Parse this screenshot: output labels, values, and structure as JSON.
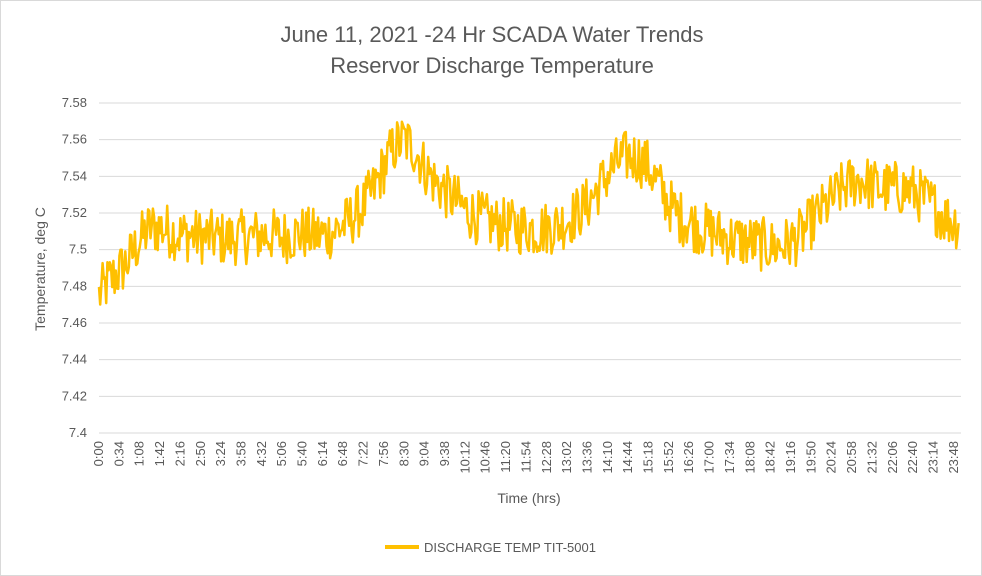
{
  "chart_data": {
    "type": "line",
    "title_lines": [
      "June 11, 2021 -24 Hr SCADA Water Trends",
      "Reservor Discharge Temperature"
    ],
    "xlabel": "Time (hrs)",
    "ylabel": "Temperature, deg C",
    "ylim": [
      7.4,
      7.58
    ],
    "y_ticks": [
      "7.4",
      "7.42",
      "7.44",
      "7.46",
      "7.48",
      "7.5",
      "7.52",
      "7.54",
      "7.56",
      "7.58"
    ],
    "x_tick_labels": [
      "0:00",
      "0:34",
      "1:08",
      "1:42",
      "2:16",
      "2:50",
      "3:24",
      "3:58",
      "4:32",
      "5:06",
      "5:40",
      "6:14",
      "6:48",
      "7:22",
      "7:56",
      "8:30",
      "9:04",
      "9:38",
      "10:12",
      "10:46",
      "11:20",
      "11:54",
      "12:28",
      "13:02",
      "13:36",
      "14:10",
      "14:44",
      "15:18",
      "15:52",
      "16:26",
      "17:00",
      "17:34",
      "18:08",
      "18:42",
      "19:16",
      "19:50",
      "20:24",
      "20:58",
      "21:32",
      "22:06",
      "22:40",
      "23:14",
      "23:48"
    ],
    "grid": true,
    "legend_position": "bottom",
    "series": [
      {
        "name": "DISCHARGE TEMP TIT-5001",
        "color": "#FFC000",
        "x_minutes": [
          0,
          17,
          34,
          51,
          68,
          85,
          102,
          119,
          136,
          153,
          170,
          187,
          204,
          221,
          238,
          255,
          272,
          289,
          306,
          323,
          340,
          357,
          374,
          391,
          408,
          425,
          442,
          459,
          476,
          493,
          510,
          527,
          544,
          561,
          578,
          595,
          612,
          629,
          646,
          663,
          680,
          697,
          714,
          731,
          748,
          765,
          782,
          799,
          816,
          833,
          850,
          867,
          884,
          901,
          918,
          935,
          952,
          969,
          986,
          1003,
          1020,
          1037,
          1054,
          1071,
          1088,
          1105,
          1122,
          1139,
          1156,
          1173,
          1190,
          1207,
          1224,
          1241,
          1258,
          1275,
          1292,
          1309,
          1326,
          1343,
          1360,
          1377,
          1394,
          1411,
          1428,
          1436
        ],
        "values": [
          7.475,
          7.483,
          7.488,
          7.495,
          7.505,
          7.512,
          7.512,
          7.51,
          7.508,
          7.508,
          7.507,
          7.507,
          7.506,
          7.506,
          7.507,
          7.507,
          7.508,
          7.508,
          7.507,
          7.508,
          7.509,
          7.508,
          7.508,
          7.51,
          7.513,
          7.518,
          7.524,
          7.533,
          7.545,
          7.556,
          7.56,
          7.555,
          7.545,
          7.537,
          7.532,
          7.527,
          7.522,
          7.518,
          7.516,
          7.514,
          7.513,
          7.512,
          7.512,
          7.511,
          7.512,
          7.513,
          7.516,
          7.52,
          7.525,
          7.533,
          7.541,
          7.548,
          7.551,
          7.55,
          7.545,
          7.535,
          7.525,
          7.518,
          7.515,
          7.512,
          7.51,
          7.508,
          7.506,
          7.505,
          7.504,
          7.503,
          7.502,
          7.502,
          7.504,
          7.508,
          7.515,
          7.521,
          7.527,
          7.533,
          7.537,
          7.538,
          7.535,
          7.533,
          7.534,
          7.533,
          7.532,
          7.528,
          7.524,
          7.518,
          7.515,
          7.515
        ],
        "noise_amplitude": 0.015
      }
    ]
  }
}
